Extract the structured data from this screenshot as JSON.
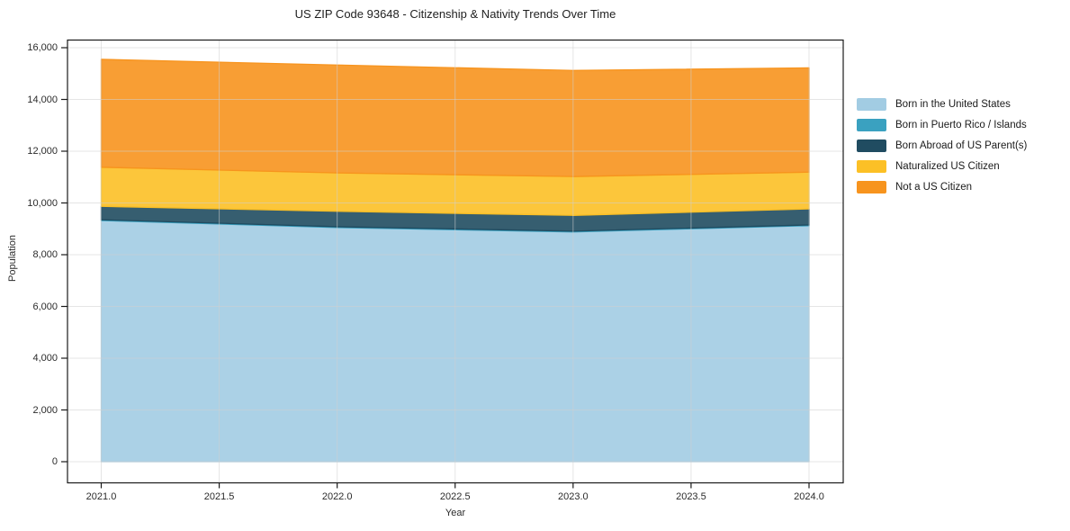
{
  "chart_data": {
    "type": "area",
    "stacked": true,
    "title": "US ZIP Code 93648 - Citizenship & Nativity Trends Over Time",
    "xlabel": "Year",
    "ylabel": "Population",
    "x": [
      2021,
      2022,
      2023,
      2024
    ],
    "series": [
      {
        "name": "Born in the United States",
        "color": "#A2CCE3",
        "values": [
          9320,
          9050,
          8880,
          9120
        ]
      },
      {
        "name": "Born in Puerto Rico / Islands",
        "color": "#3AA1C0",
        "values": [
          30,
          30,
          30,
          30
        ]
      },
      {
        "name": "Born Abroad of US Parent(s)",
        "color": "#204C61",
        "values": [
          520,
          600,
          610,
          620
        ]
      },
      {
        "name": "Naturalized US Citizen",
        "color": "#FCC026",
        "values": [
          1510,
          1480,
          1500,
          1420
        ]
      },
      {
        "name": "Not a US Citizen",
        "color": "#F7941E",
        "values": [
          4170,
          4170,
          4100,
          4030
        ]
      }
    ],
    "xlim": [
      2020.857,
      2024.145
    ],
    "ylim": [
      -820,
      16295
    ],
    "x_tick_labels": [
      "2021.0",
      "2021.5",
      "2022.0",
      "2022.5",
      "2023.0",
      "2023.5",
      "2024.0"
    ],
    "x_tick_values": [
      2021,
      2021.5,
      2022,
      2022.5,
      2023,
      2023.5,
      2024
    ],
    "y_tick_labels": [
      "0",
      "2,000",
      "4,000",
      "6,000",
      "8,000",
      "10,000",
      "12,000",
      "14,000",
      "16,000"
    ],
    "y_tick_values": [
      0,
      2000,
      4000,
      6000,
      8000,
      10000,
      12000,
      14000,
      16000
    ],
    "grid": true,
    "legend_position": "right",
    "spine_color": "#1a1a1a",
    "grid_color": "#cfcfcf",
    "fill_opacity": 0.9
  }
}
